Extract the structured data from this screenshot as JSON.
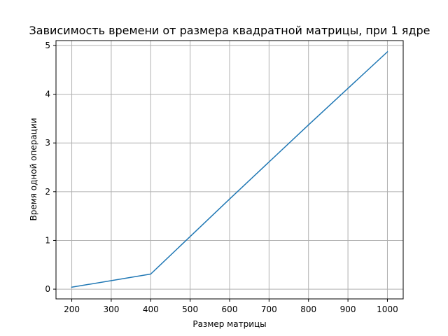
{
  "chart_data": {
    "type": "line",
    "title": "Зависимость времени от размера квадратной матрицы, при 1 ядре",
    "xlabel": "Размер матрицы",
    "ylabel": "Время одной операции",
    "x": [
      200,
      400,
      600,
      800,
      1000
    ],
    "series": [
      {
        "values": [
          0.04,
          0.31,
          1.85,
          3.37,
          4.87
        ],
        "color": "#1f77b4"
      }
    ],
    "xlim": [
      160,
      1040
    ],
    "ylim": [
      -0.2,
      5.1
    ],
    "xticks": [
      200,
      300,
      400,
      500,
      600,
      700,
      800,
      900,
      1000
    ],
    "yticks": [
      0,
      1,
      2,
      3,
      4,
      5
    ],
    "grid": true,
    "legend": "none"
  }
}
